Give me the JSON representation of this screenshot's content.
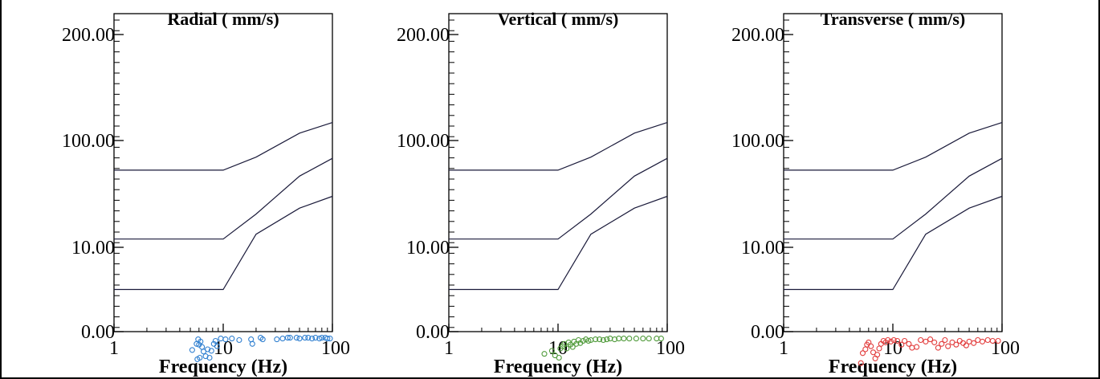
{
  "chart_data": [
    {
      "type": "scatter",
      "title": "Radial ( mm/s)",
      "xlabel": "Frequency (Hz)",
      "ylabel": "",
      "x_scale": "log",
      "xlim": [
        1,
        100
      ],
      "ylim": [
        0,
        200
      ],
      "x_tick_labels": [
        "1",
        "10",
        "100"
      ],
      "y_tick_labels": [
        "0.00",
        "10.00",
        "100.00",
        "200.00"
      ],
      "marker_color": "#2f7fd0",
      "reference_curves": [
        {
          "points": [
            [
              1,
              75
            ],
            [
              10,
              75
            ],
            [
              20,
              86
            ],
            [
              50,
              107
            ],
            [
              100,
              117
            ]
          ]
        },
        {
          "points": [
            [
              1,
              17
            ],
            [
              10,
              17
            ],
            [
              20,
              38
            ],
            [
              50,
              70
            ],
            [
              100,
              85
            ]
          ]
        },
        {
          "points": [
            [
              1,
              5
            ],
            [
              10,
              5
            ],
            [
              20,
              21
            ],
            [
              50,
              43
            ],
            [
              100,
              53
            ]
          ]
        }
      ],
      "points": [
        {
          "x": 5.2,
          "y": -24
        },
        {
          "x": 5.7,
          "y": -16
        },
        {
          "x": 5.9,
          "y": -10
        },
        {
          "x": 6.0,
          "y": -17
        },
        {
          "x": 6.2,
          "y": -13
        },
        {
          "x": 6.4,
          "y": -20
        },
        {
          "x": 6.6,
          "y": -26
        },
        {
          "x": 6.1,
          "y": -34
        },
        {
          "x": 5.8,
          "y": -36
        },
        {
          "x": 6.9,
          "y": -32
        },
        {
          "x": 7.2,
          "y": -23
        },
        {
          "x": 7.5,
          "y": -34
        },
        {
          "x": 7.8,
          "y": -25
        },
        {
          "x": 8.2,
          "y": -16
        },
        {
          "x": 8.5,
          "y": -12
        },
        {
          "x": 8.8,
          "y": -19
        },
        {
          "x": 9.5,
          "y": -9
        },
        {
          "x": 10.5,
          "y": -10
        },
        {
          "x": 12,
          "y": -9
        },
        {
          "x": 14,
          "y": -11
        },
        {
          "x": 18,
          "y": -10
        },
        {
          "x": 18.5,
          "y": -16
        },
        {
          "x": 22,
          "y": -8
        },
        {
          "x": 23,
          "y": -10
        },
        {
          "x": 31,
          "y": -10
        },
        {
          "x": 35,
          "y": -9
        },
        {
          "x": 39,
          "y": -8
        },
        {
          "x": 41,
          "y": -8
        },
        {
          "x": 47,
          "y": -8
        },
        {
          "x": 50,
          "y": -9
        },
        {
          "x": 56,
          "y": -8
        },
        {
          "x": 60,
          "y": -8
        },
        {
          "x": 65,
          "y": -9
        },
        {
          "x": 70,
          "y": -8
        },
        {
          "x": 76,
          "y": -9
        },
        {
          "x": 80,
          "y": -8
        },
        {
          "x": 86,
          "y": -8
        },
        {
          "x": 90,
          "y": -9
        },
        {
          "x": 95,
          "y": -9
        }
      ]
    },
    {
      "type": "scatter",
      "title": "Vertical ( mm/s)",
      "xlabel": "Frequency (Hz)",
      "ylabel": "",
      "x_scale": "log",
      "xlim": [
        1,
        100
      ],
      "ylim": [
        0,
        200
      ],
      "x_tick_labels": [
        "1",
        "10",
        "100"
      ],
      "y_tick_labels": [
        "0.00",
        "10.00",
        "100.00",
        "200.00"
      ],
      "marker_color": "#4f9a3a",
      "reference_curves": [
        {
          "points": [
            [
              1,
              75
            ],
            [
              10,
              75
            ],
            [
              20,
              86
            ],
            [
              50,
              107
            ],
            [
              100,
              117
            ]
          ]
        },
        {
          "points": [
            [
              1,
              17
            ],
            [
              10,
              17
            ],
            [
              20,
              38
            ],
            [
              50,
              70
            ],
            [
              100,
              85
            ]
          ]
        },
        {
          "points": [
            [
              1,
              5
            ],
            [
              10,
              5
            ],
            [
              20,
              21
            ],
            [
              50,
              43
            ],
            [
              100,
              53
            ]
          ]
        }
      ],
      "points": [
        {
          "x": 7.5,
          "y": -29
        },
        {
          "x": 8.8,
          "y": -25
        },
        {
          "x": 9.4,
          "y": -31
        },
        {
          "x": 10.2,
          "y": -34
        },
        {
          "x": 10.5,
          "y": -22
        },
        {
          "x": 11,
          "y": -19
        },
        {
          "x": 11.4,
          "y": -16
        },
        {
          "x": 12,
          "y": -22
        },
        {
          "x": 12.5,
          "y": -14
        },
        {
          "x": 13,
          "y": -17
        },
        {
          "x": 13.6,
          "y": -20
        },
        {
          "x": 14,
          "y": -13
        },
        {
          "x": 14.7,
          "y": -16
        },
        {
          "x": 15.4,
          "y": -11
        },
        {
          "x": 16,
          "y": -15
        },
        {
          "x": 17,
          "y": -12
        },
        {
          "x": 18,
          "y": -10
        },
        {
          "x": 19,
          "y": -12
        },
        {
          "x": 20,
          "y": -11
        },
        {
          "x": 22,
          "y": -10
        },
        {
          "x": 24,
          "y": -10
        },
        {
          "x": 26,
          "y": -11
        },
        {
          "x": 28,
          "y": -10
        },
        {
          "x": 30,
          "y": -9
        },
        {
          "x": 33,
          "y": -10
        },
        {
          "x": 36,
          "y": -9
        },
        {
          "x": 40,
          "y": -9
        },
        {
          "x": 45,
          "y": -9
        },
        {
          "x": 52,
          "y": -9
        },
        {
          "x": 60,
          "y": -9
        },
        {
          "x": 68,
          "y": -9
        },
        {
          "x": 80,
          "y": -9
        },
        {
          "x": 88,
          "y": -9
        }
      ]
    },
    {
      "type": "scatter",
      "title": "Transverse ( mm/s)",
      "xlabel": "Frequency (Hz)",
      "ylabel": "",
      "x_scale": "log",
      "xlim": [
        1,
        100
      ],
      "ylim": [
        0,
        200
      ],
      "x_tick_labels": [
        "1",
        "10",
        "100"
      ],
      "y_tick_labels": [
        "0.00",
        "10.00",
        "100.00",
        "200.00"
      ],
      "marker_color": "#e23c3c",
      "reference_curves": [
        {
          "points": [
            [
              1,
              75
            ],
            [
              10,
              75
            ],
            [
              20,
              86
            ],
            [
              50,
              107
            ],
            [
              100,
              117
            ]
          ]
        },
        {
          "points": [
            [
              1,
              17
            ],
            [
              10,
              17
            ],
            [
              20,
              38
            ],
            [
              50,
              70
            ],
            [
              100,
              85
            ]
          ]
        },
        {
          "points": [
            [
              1,
              5
            ],
            [
              10,
              5
            ],
            [
              20,
              21
            ],
            [
              50,
              43
            ],
            [
              100,
              53
            ]
          ]
        }
      ],
      "points": [
        {
          "x": 5.1,
          "y": -41
        },
        {
          "x": 5.3,
          "y": -28
        },
        {
          "x": 5.6,
          "y": -23
        },
        {
          "x": 5.8,
          "y": -17
        },
        {
          "x": 6.0,
          "y": -14
        },
        {
          "x": 6.3,
          "y": -19
        },
        {
          "x": 6.6,
          "y": -27
        },
        {
          "x": 6.9,
          "y": -35
        },
        {
          "x": 7.2,
          "y": -30
        },
        {
          "x": 7.5,
          "y": -22
        },
        {
          "x": 7.8,
          "y": -16
        },
        {
          "x": 8.2,
          "y": -12
        },
        {
          "x": 8.6,
          "y": -14
        },
        {
          "x": 9.0,
          "y": -11
        },
        {
          "x": 9.6,
          "y": -13
        },
        {
          "x": 10.2,
          "y": -11
        },
        {
          "x": 11,
          "y": -12
        },
        {
          "x": 12,
          "y": -17
        },
        {
          "x": 12.8,
          "y": -12
        },
        {
          "x": 14,
          "y": -16
        },
        {
          "x": 15,
          "y": -21
        },
        {
          "x": 16.5,
          "y": -20
        },
        {
          "x": 18,
          "y": -11
        },
        {
          "x": 20,
          "y": -13
        },
        {
          "x": 22,
          "y": -10
        },
        {
          "x": 24,
          "y": -14
        },
        {
          "x": 26,
          "y": -21
        },
        {
          "x": 28,
          "y": -16
        },
        {
          "x": 30,
          "y": -11
        },
        {
          "x": 32,
          "y": -19
        },
        {
          "x": 35,
          "y": -14
        },
        {
          "x": 38,
          "y": -17
        },
        {
          "x": 41,
          "y": -12
        },
        {
          "x": 44,
          "y": -15
        },
        {
          "x": 47,
          "y": -18
        },
        {
          "x": 50,
          "y": -13
        },
        {
          "x": 55,
          "y": -15
        },
        {
          "x": 60,
          "y": -11
        },
        {
          "x": 66,
          "y": -13
        },
        {
          "x": 74,
          "y": -11
        },
        {
          "x": 82,
          "y": -12
        },
        {
          "x": 92,
          "y": -12
        }
      ]
    }
  ]
}
